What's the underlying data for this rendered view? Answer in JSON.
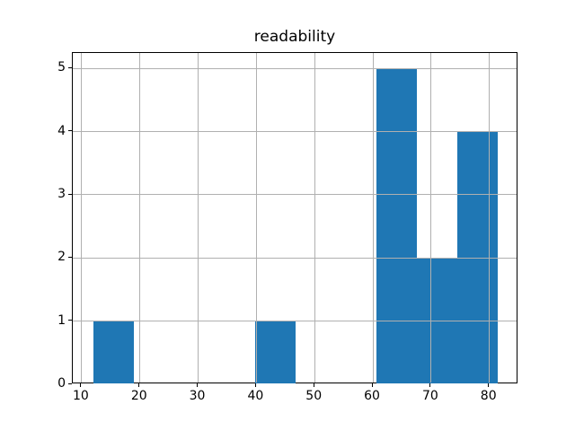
{
  "figure": {
    "background": "#ffffff"
  },
  "chart_data": {
    "type": "histogram",
    "title": "readability",
    "xlabel": "",
    "ylabel": "",
    "bin_edges": [
      11.95,
      18.91,
      25.86,
      32.82,
      39.77,
      46.73,
      53.68,
      60.64,
      67.59,
      74.55,
      81.5
    ],
    "counts": [
      1,
      0,
      0,
      0,
      1,
      0,
      0,
      5,
      2,
      4
    ],
    "xticks": [
      10,
      20,
      30,
      40,
      50,
      60,
      70,
      80
    ],
    "yticks": [
      0,
      1,
      2,
      3,
      4,
      5
    ],
    "xlim": [
      8.47,
      84.98
    ],
    "ylim": [
      0,
      5.25
    ],
    "grid": true,
    "legend": false,
    "grid_color": "#b0b0b0",
    "bar_color": "#1f77b4",
    "spine_color": "#000000",
    "text_color": "#000000"
  }
}
